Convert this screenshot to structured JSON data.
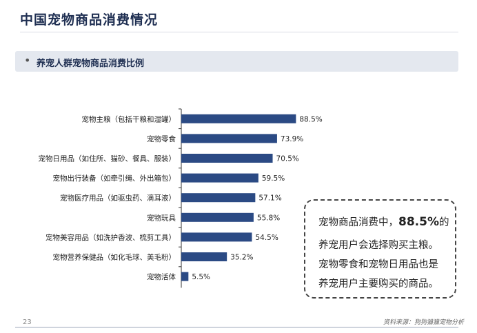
{
  "page": {
    "title": "中国宠物商品消费情况",
    "section_label": "养宠人群宠物商品消费比例",
    "section_bullet": "•",
    "page_number": "23",
    "source": "资料来源：狗狗猫猫宠物分析"
  },
  "callout": {
    "line1_pre": "宠物商品消费中，",
    "line1_bold": "88.5%",
    "line1_post": "的",
    "line2": "养宠用户会选择购买主粮。",
    "line3": "宠物零食和宠物日用品也是",
    "line4": "养宠用户主要购买的商品。"
  },
  "chart_data": {
    "type": "bar",
    "orientation": "horizontal",
    "categories": [
      "宠物主粮（包括干粮和湿罐）",
      "宠物零食",
      "宠物日用品（如住所、猫砂、餐具、服装）",
      "宠物出行装备（如牵引绳、外出箱包）",
      "宠物医疗用品（如驱虫药、滴耳液）",
      "宠物玩具",
      "宠物美容用品（如洗护香波、梳剪工具）",
      "宠物营养保健品（如化毛球、美毛粉）",
      "宠物活体"
    ],
    "values": [
      88.5,
      73.9,
      70.5,
      59.5,
      57.1,
      55.8,
      54.5,
      35.2,
      5.5
    ],
    "value_labels": [
      "88.5%",
      "73.9%",
      "70.5%",
      "59.5%",
      "57.1%",
      "55.8%",
      "54.5%",
      "35.2%",
      "5.5%"
    ],
    "bar_color": "#2b4a84",
    "xlim": [
      0,
      100
    ],
    "grid": false,
    "legend": "none"
  }
}
